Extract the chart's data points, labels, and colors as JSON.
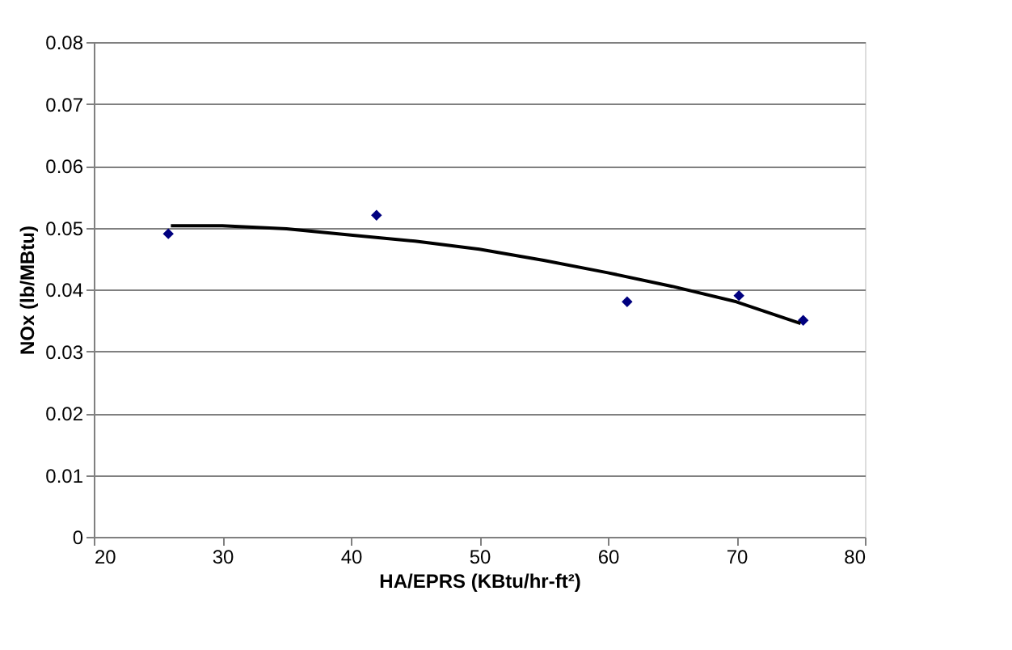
{
  "chart_data": {
    "type": "scatter",
    "xlabel": "HA/EPRS (KBtu/hr-ft²)",
    "ylabel": "NOx (lb/MBtu)",
    "series": [
      {
        "color": "#00007f",
        "marker": "diamond",
        "x": [
          25.8,
          42,
          61.5,
          70.2,
          75.2
        ],
        "values": [
          0.049,
          0.052,
          0.038,
          0.039,
          0.035
        ]
      },
      {
        "type": "line",
        "color": "#000000",
        "marker": "none",
        "line_style": "solid",
        "x": [
          26,
          30,
          35,
          40,
          45,
          50,
          55,
          60,
          65,
          70,
          75
        ],
        "values": [
          0.0503,
          0.0503,
          0.0498,
          0.0488,
          0.0478,
          0.0465,
          0.0447,
          0.0427,
          0.0405,
          0.038,
          0.0345
        ]
      }
    ],
    "xlim": [
      20,
      80
    ],
    "xticks": [
      20,
      30,
      40,
      50,
      60,
      70,
      80
    ],
    "ylim": [
      0,
      0.08
    ],
    "yticks": [
      0,
      0.01,
      0.02,
      0.03,
      0.04,
      0.05,
      0.06,
      0.07,
      0.08
    ],
    "grid": "y"
  }
}
